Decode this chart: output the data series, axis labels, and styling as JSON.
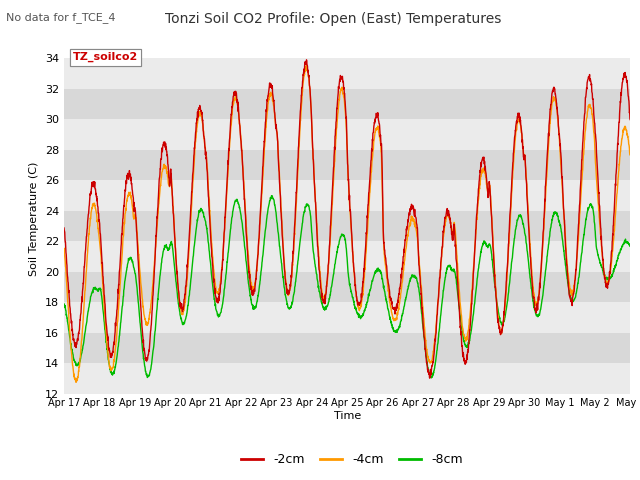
{
  "title": "Tonzi Soil CO2 Profile: Open (East) Temperatures",
  "subtitle": "No data for f_TCE_4",
  "ylabel": "Soil Temperature (C)",
  "xlabel": "Time",
  "legend_label": "TZ_soilco2",
  "ylim": [
    12,
    35
  ],
  "yticks": [
    12,
    14,
    16,
    18,
    20,
    22,
    24,
    26,
    28,
    30,
    32,
    34
  ],
  "line_colors": {
    "neg2cm": "#cc0000",
    "neg4cm": "#ff9900",
    "neg8cm": "#00bb00"
  },
  "line_labels": [
    "-2cm",
    "-4cm",
    "-8cm"
  ],
  "bg_color": "#ffffff",
  "plot_bg_light": "#ebebeb",
  "plot_bg_dark": "#d8d8d8",
  "num_days": 16,
  "day_peaks_2cm": [
    25.8,
    26.5,
    28.5,
    30.8,
    31.8,
    32.3,
    33.8,
    32.8,
    30.3,
    24.2,
    24.0,
    27.4,
    30.3,
    32.0,
    32.8,
    33.0
  ],
  "day_mins_2cm": [
    15.2,
    14.5,
    14.2,
    17.5,
    18.0,
    18.5,
    18.5,
    18.0,
    17.8,
    17.5,
    13.2,
    14.0,
    16.0,
    17.5,
    18.0,
    19.0
  ],
  "day_peaks_4cm": [
    24.5,
    25.2,
    27.0,
    30.5,
    31.5,
    31.8,
    33.5,
    32.0,
    29.5,
    23.5,
    23.8,
    26.8,
    30.0,
    31.5,
    31.0,
    29.5
  ],
  "day_mins_4cm": [
    12.8,
    13.5,
    16.5,
    17.2,
    18.5,
    18.8,
    18.5,
    18.2,
    17.5,
    16.8,
    14.0,
    15.5,
    16.0,
    17.8,
    18.5,
    19.2
  ],
  "day_peaks_8cm": [
    19.0,
    21.0,
    21.8,
    24.2,
    24.8,
    25.0,
    24.5,
    22.5,
    20.2,
    19.8,
    20.5,
    22.0,
    23.8,
    24.0,
    24.5,
    22.0
  ],
  "day_mins_8cm": [
    13.8,
    13.2,
    13.0,
    16.5,
    17.0,
    17.5,
    17.5,
    17.5,
    17.0,
    16.0,
    13.0,
    15.0,
    16.5,
    17.0,
    18.0,
    19.5
  ]
}
